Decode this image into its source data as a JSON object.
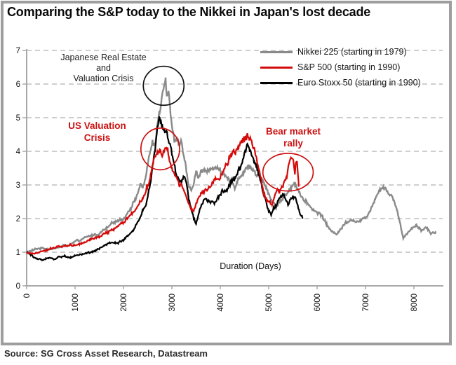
{
  "header": {
    "title": "Comparing the S&P today to the Nikkei in Japan's lost decade"
  },
  "footer": {
    "source": "Source: SG Cross Asset Research, Datastream"
  },
  "annotations": {
    "japan_crisis": {
      "line1": "Japanese Real Estate",
      "line2": "and",
      "line3": "Valuation Crisis",
      "color": "#1c1c1c"
    },
    "us_crisis": {
      "line1": "US Valuation",
      "line2": "Crisis",
      "color": "#cc1111"
    },
    "bear_rally": {
      "line1": "Bear market",
      "line2": "rally",
      "color": "#cc1111"
    }
  },
  "chart_data": {
    "type": "line",
    "title": "Comparing the S&P today to the Nikkei in Japan's lost decade",
    "xlabel": "Duration (Days)",
    "ylabel": "",
    "xlim": [
      0,
      8600
    ],
    "ylim": [
      0,
      7
    ],
    "x_ticks": [
      0,
      1000,
      2000,
      3000,
      4000,
      5000,
      6000,
      7000,
      8000
    ],
    "y_ticks": [
      0,
      1,
      2,
      3,
      4,
      5,
      6,
      7
    ],
    "grid": "horizontal dashed",
    "legend_position": "top-right inside plot",
    "note": "y = index level as multiple of starting value; points are [duration_days, multiple] estimates read from plot",
    "series": [
      {
        "name": "Nikkei 225  (starting in 1979)",
        "color": "#8a8a8a",
        "stroke_width": 2.4,
        "points": [
          [
            0,
            1.0
          ],
          [
            150,
            1.05
          ],
          [
            300,
            1.1
          ],
          [
            450,
            1.12
          ],
          [
            600,
            1.15
          ],
          [
            750,
            1.2
          ],
          [
            900,
            1.24
          ],
          [
            1050,
            1.3
          ],
          [
            1200,
            1.38
          ],
          [
            1350,
            1.45
          ],
          [
            1500,
            1.52
          ],
          [
            1650,
            1.65
          ],
          [
            1800,
            1.85
          ],
          [
            1900,
            1.95
          ],
          [
            2000,
            2.05
          ],
          [
            2100,
            2.3
          ],
          [
            2200,
            2.5
          ],
          [
            2300,
            2.85
          ],
          [
            2350,
            3.1
          ],
          [
            2400,
            2.95
          ],
          [
            2450,
            3.3
          ],
          [
            2500,
            3.7
          ],
          [
            2550,
            4.1
          ],
          [
            2600,
            4.35
          ],
          [
            2650,
            4.2
          ],
          [
            2700,
            4.8
          ],
          [
            2750,
            5.4
          ],
          [
            2800,
            5.9
          ],
          [
            2870,
            6.4
          ],
          [
            2900,
            5.9
          ],
          [
            2930,
            6.1
          ],
          [
            2960,
            5.6
          ],
          [
            3000,
            4.9
          ],
          [
            3050,
            4.4
          ],
          [
            3100,
            4.55
          ],
          [
            3150,
            4.35
          ],
          [
            3200,
            4.5
          ],
          [
            3250,
            3.9
          ],
          [
            3300,
            3.4
          ],
          [
            3350,
            2.95
          ],
          [
            3400,
            2.7
          ],
          [
            3450,
            3.0
          ],
          [
            3500,
            3.3
          ],
          [
            3550,
            3.1
          ],
          [
            3600,
            3.25
          ],
          [
            3700,
            3.35
          ],
          [
            3800,
            3.5
          ],
          [
            3900,
            3.4
          ],
          [
            4000,
            3.5
          ],
          [
            4100,
            3.2
          ],
          [
            4200,
            2.95
          ],
          [
            4300,
            2.9
          ],
          [
            4400,
            3.25
          ],
          [
            4500,
            3.5
          ],
          [
            4560,
            3.7
          ],
          [
            4650,
            3.6
          ],
          [
            4750,
            3.4
          ],
          [
            4850,
            3.2
          ],
          [
            4950,
            2.9
          ],
          [
            5050,
            2.6
          ],
          [
            5150,
            2.4
          ],
          [
            5250,
            2.6
          ],
          [
            5350,
            2.75
          ],
          [
            5450,
            3.0
          ],
          [
            5530,
            3.2
          ],
          [
            5600,
            3.0
          ],
          [
            5700,
            2.7
          ],
          [
            5800,
            2.45
          ],
          [
            5900,
            2.3
          ],
          [
            6000,
            2.2
          ],
          [
            6100,
            2.1
          ],
          [
            6200,
            1.85
          ],
          [
            6300,
            1.6
          ],
          [
            6400,
            1.55
          ],
          [
            6500,
            1.75
          ],
          [
            6600,
            1.95
          ],
          [
            6700,
            2.05
          ],
          [
            6800,
            2.0
          ],
          [
            6900,
            1.95
          ],
          [
            7000,
            2.05
          ],
          [
            7100,
            2.35
          ],
          [
            7200,
            2.7
          ],
          [
            7300,
            3.0
          ],
          [
            7370,
            3.05
          ],
          [
            7450,
            2.9
          ],
          [
            7550,
            2.75
          ],
          [
            7650,
            2.35
          ],
          [
            7720,
            1.9
          ],
          [
            7780,
            1.45
          ],
          [
            7850,
            1.6
          ],
          [
            7950,
            1.75
          ],
          [
            8050,
            1.9
          ],
          [
            8150,
            1.7
          ],
          [
            8250,
            1.8
          ],
          [
            8350,
            1.6
          ],
          [
            8450,
            1.62
          ]
        ]
      },
      {
        "name": "S&P 500  (starting in 1990)",
        "color": "#d40a0a",
        "stroke_width": 2.2,
        "points": [
          [
            0,
            1.0
          ],
          [
            100,
            0.98
          ],
          [
            200,
            1.02
          ],
          [
            300,
            1.06
          ],
          [
            400,
            1.1
          ],
          [
            500,
            1.12
          ],
          [
            600,
            1.14
          ],
          [
            700,
            1.18
          ],
          [
            800,
            1.22
          ],
          [
            900,
            1.24
          ],
          [
            1000,
            1.26
          ],
          [
            1100,
            1.3
          ],
          [
            1200,
            1.36
          ],
          [
            1300,
            1.44
          ],
          [
            1400,
            1.48
          ],
          [
            1500,
            1.52
          ],
          [
            1600,
            1.58
          ],
          [
            1700,
            1.66
          ],
          [
            1800,
            1.75
          ],
          [
            1900,
            1.85
          ],
          [
            2000,
            1.95
          ],
          [
            2100,
            2.15
          ],
          [
            2200,
            2.25
          ],
          [
            2300,
            2.45
          ],
          [
            2400,
            2.7
          ],
          [
            2500,
            3.1
          ],
          [
            2550,
            3.35
          ],
          [
            2600,
            3.7
          ],
          [
            2650,
            3.95
          ],
          [
            2700,
            4.1
          ],
          [
            2750,
            4.25
          ],
          [
            2800,
            4.0
          ],
          [
            2850,
            4.2
          ],
          [
            2900,
            4.25
          ],
          [
            2950,
            3.9
          ],
          [
            3000,
            3.6
          ],
          [
            3050,
            3.4
          ],
          [
            3100,
            3.35
          ],
          [
            3150,
            3.1
          ],
          [
            3200,
            3.2
          ],
          [
            3250,
            2.9
          ],
          [
            3300,
            2.7
          ],
          [
            3350,
            2.5
          ],
          [
            3400,
            2.4
          ],
          [
            3450,
            2.3
          ],
          [
            3500,
            2.55
          ],
          [
            3550,
            2.7
          ],
          [
            3600,
            2.85
          ],
          [
            3700,
            2.95
          ],
          [
            3800,
            3.1
          ],
          [
            3900,
            3.25
          ],
          [
            4000,
            3.35
          ],
          [
            4100,
            3.6
          ],
          [
            4200,
            3.85
          ],
          [
            4300,
            4.0
          ],
          [
            4400,
            4.25
          ],
          [
            4500,
            4.35
          ],
          [
            4560,
            4.4
          ],
          [
            4620,
            4.2
          ],
          [
            4700,
            3.9
          ],
          [
            4750,
            3.6
          ],
          [
            4800,
            3.3
          ],
          [
            4850,
            3.0
          ],
          [
            4900,
            2.7
          ],
          [
            4950,
            2.55
          ],
          [
            5000,
            2.45
          ],
          [
            5070,
            2.35
          ],
          [
            5120,
            2.6
          ],
          [
            5170,
            2.8
          ],
          [
            5220,
            2.7
          ],
          [
            5270,
            2.9
          ],
          [
            5320,
            3.05
          ],
          [
            5370,
            3.2
          ],
          [
            5420,
            3.5
          ],
          [
            5470,
            3.75
          ],
          [
            5510,
            3.6
          ],
          [
            5540,
            3.2
          ],
          [
            5560,
            3.5
          ],
          [
            5590,
            3.55
          ],
          [
            5620,
            2.95
          ]
        ]
      },
      {
        "name": "Euro Stoxx 50 (starting in 1990)",
        "color": "#000000",
        "stroke_width": 2.2,
        "points": [
          [
            0,
            1.0
          ],
          [
            80,
            0.92
          ],
          [
            160,
            0.85
          ],
          [
            240,
            0.78
          ],
          [
            320,
            0.74
          ],
          [
            400,
            0.78
          ],
          [
            480,
            0.82
          ],
          [
            560,
            0.8
          ],
          [
            640,
            0.85
          ],
          [
            720,
            0.88
          ],
          [
            800,
            0.9
          ],
          [
            900,
            0.88
          ],
          [
            1000,
            0.92
          ],
          [
            1100,
            0.96
          ],
          [
            1200,
            1.0
          ],
          [
            1300,
            1.02
          ],
          [
            1400,
            1.08
          ],
          [
            1500,
            1.12
          ],
          [
            1600,
            1.22
          ],
          [
            1700,
            1.3
          ],
          [
            1800,
            1.28
          ],
          [
            1900,
            1.25
          ],
          [
            2000,
            1.3
          ],
          [
            2100,
            1.45
          ],
          [
            2200,
            1.6
          ],
          [
            2300,
            1.85
          ],
          [
            2400,
            2.15
          ],
          [
            2500,
            2.6
          ],
          [
            2550,
            2.9
          ],
          [
            2600,
            3.4
          ],
          [
            2650,
            3.9
          ],
          [
            2700,
            4.5
          ],
          [
            2750,
            4.88
          ],
          [
            2800,
            4.6
          ],
          [
            2850,
            4.5
          ],
          [
            2900,
            4.35
          ],
          [
            2950,
            4.1
          ],
          [
            3000,
            3.8
          ],
          [
            3050,
            3.5
          ],
          [
            3100,
            3.2
          ],
          [
            3150,
            3.05
          ],
          [
            3200,
            2.95
          ],
          [
            3250,
            3.15
          ],
          [
            3300,
            3.0
          ],
          [
            3350,
            2.5
          ],
          [
            3400,
            2.2
          ],
          [
            3450,
            1.95
          ],
          [
            3500,
            1.78
          ],
          [
            3550,
            2.1
          ],
          [
            3600,
            2.3
          ],
          [
            3700,
            2.5
          ],
          [
            3800,
            2.45
          ],
          [
            3900,
            2.5
          ],
          [
            4000,
            2.7
          ],
          [
            4100,
            2.9
          ],
          [
            4200,
            3.1
          ],
          [
            4300,
            3.3
          ],
          [
            4400,
            3.6
          ],
          [
            4500,
            3.95
          ],
          [
            4560,
            4.1
          ],
          [
            4620,
            3.9
          ],
          [
            4700,
            3.6
          ],
          [
            4750,
            3.4
          ],
          [
            4800,
            3.15
          ],
          [
            4850,
            2.9
          ],
          [
            4900,
            2.6
          ],
          [
            4950,
            2.4
          ],
          [
            5000,
            2.2
          ],
          [
            5050,
            2.1
          ],
          [
            5100,
            2.2
          ],
          [
            5150,
            2.3
          ],
          [
            5200,
            2.45
          ],
          [
            5250,
            2.55
          ],
          [
            5300,
            2.6
          ],
          [
            5350,
            2.5
          ],
          [
            5400,
            2.45
          ],
          [
            5450,
            2.6
          ],
          [
            5500,
            2.65
          ],
          [
            5550,
            2.6
          ],
          [
            5600,
            2.3
          ],
          [
            5650,
            2.1
          ],
          [
            5700,
            2.0
          ]
        ]
      }
    ],
    "annotation_circles": [
      {
        "label": "japanese-real-estate-valuation-crisis-peak",
        "color": "#111111",
        "center_day": 2830,
        "center_value": 5.95,
        "radius_days": 420,
        "radius_value": 0.58
      },
      {
        "label": "us-valuation-crisis-peak",
        "color": "#cc1111",
        "center_day": 2760,
        "center_value": 4.07,
        "radius_days": 400,
        "radius_value": 0.62
      },
      {
        "label": "bear-market-rally",
        "color": "#cc1111",
        "center_day": 5400,
        "center_value": 3.38,
        "radius_days": 520,
        "radius_value": 0.56
      }
    ]
  }
}
